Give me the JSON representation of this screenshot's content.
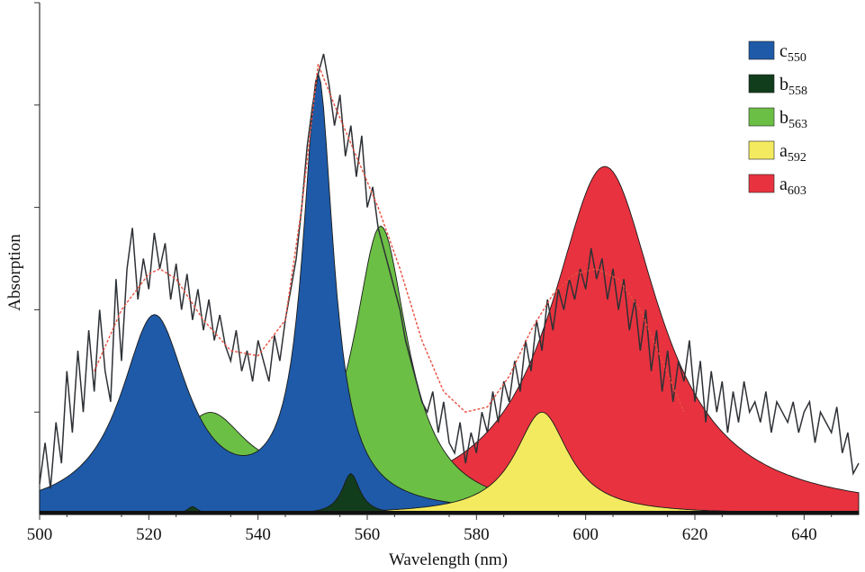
{
  "chart_data": {
    "type": "area",
    "xlabel": "Wavelength (nm)",
    "ylabel": "Absorption",
    "xlim": [
      500,
      650
    ],
    "ylim": [
      0,
      1.0
    ],
    "x_ticks": [
      500,
      520,
      540,
      560,
      580,
      600,
      620,
      640
    ],
    "y_tick_labels_shown": false,
    "grid": false,
    "legend_position": "top-right",
    "series": [
      {
        "name": "c550",
        "label_main": "c",
        "label_sub": "550",
        "color": "#1e5aa8",
        "kind": "fill",
        "components": [
          {
            "center": 551,
            "height": 0.84,
            "width": 3.4
          },
          {
            "center": 521,
            "height": 0.38,
            "width": 7.5
          }
        ]
      },
      {
        "name": "b558",
        "label_main": "b",
        "label_sub": "558",
        "color": "#123d1c",
        "kind": "fill",
        "components": [
          {
            "center": 557,
            "height": 0.08,
            "width": 2.0
          },
          {
            "center": 528,
            "height": 0.015,
            "width": 1.2
          }
        ]
      },
      {
        "name": "b563",
        "label_main": "b",
        "label_sub": "563",
        "color": "#6bbf45",
        "kind": "fill",
        "components": [
          {
            "center": 562.5,
            "height": 0.55,
            "width": 6.0
          },
          {
            "center": 531,
            "height": 0.18,
            "width": 9.0
          }
        ]
      },
      {
        "name": "a592",
        "label_main": "a",
        "label_sub": "592",
        "color": "#f3ea5f",
        "kind": "fill",
        "components": [
          {
            "center": 592,
            "height": 0.2,
            "width": 6.0
          }
        ]
      },
      {
        "name": "a603",
        "label_main": "a",
        "label_sub": "603",
        "color": "#e8323f",
        "kind": "fill",
        "components": [
          {
            "center": 603.5,
            "height": 0.68,
            "width": 12.0
          }
        ]
      }
    ],
    "measured_spectrum": {
      "color": "#2e3135",
      "x": [
        500,
        501,
        502,
        503,
        504,
        505,
        506,
        507,
        508,
        509,
        510,
        511,
        512,
        513,
        514,
        515,
        516,
        517,
        518,
        519,
        520,
        521,
        522,
        523,
        524,
        525,
        526,
        527,
        528,
        529,
        530,
        531,
        532,
        533,
        534,
        535,
        536,
        537,
        538,
        539,
        540,
        541,
        542,
        543,
        544,
        545,
        546,
        547,
        548,
        549,
        550,
        551,
        552,
        553,
        554,
        555,
        556,
        557,
        558,
        559,
        560,
        561,
        562,
        563,
        564,
        565,
        566,
        567,
        568,
        569,
        570,
        571,
        572,
        573,
        574,
        575,
        576,
        577,
        578,
        579,
        580,
        581,
        582,
        583,
        584,
        585,
        586,
        587,
        588,
        589,
        590,
        591,
        592,
        593,
        594,
        595,
        596,
        597,
        598,
        599,
        600,
        601,
        602,
        603,
        604,
        605,
        606,
        607,
        608,
        609,
        610,
        611,
        612,
        613,
        614,
        615,
        616,
        617,
        618,
        619,
        620,
        621,
        622,
        623,
        624,
        625,
        626,
        627,
        628,
        629,
        630,
        631,
        632,
        633,
        634,
        635,
        636,
        637,
        638,
        639,
        640,
        641,
        642,
        643,
        644,
        645,
        646,
        647,
        648,
        649,
        650
      ],
      "y": [
        0.06,
        0.14,
        0.05,
        0.18,
        0.1,
        0.28,
        0.16,
        0.32,
        0.2,
        0.36,
        0.24,
        0.4,
        0.28,
        0.22,
        0.46,
        0.3,
        0.48,
        0.56,
        0.42,
        0.5,
        0.44,
        0.55,
        0.48,
        0.53,
        0.42,
        0.49,
        0.4,
        0.47,
        0.38,
        0.44,
        0.36,
        0.42,
        0.34,
        0.39,
        0.33,
        0.3,
        0.36,
        0.28,
        0.32,
        0.26,
        0.34,
        0.3,
        0.26,
        0.35,
        0.3,
        0.38,
        0.44,
        0.5,
        0.6,
        0.72,
        0.8,
        0.86,
        0.9,
        0.84,
        0.76,
        0.82,
        0.7,
        0.76,
        0.66,
        0.74,
        0.6,
        0.64,
        0.56,
        0.52,
        0.48,
        0.44,
        0.4,
        0.34,
        0.3,
        0.26,
        0.22,
        0.2,
        0.24,
        0.16,
        0.22,
        0.14,
        0.12,
        0.18,
        0.1,
        0.16,
        0.12,
        0.2,
        0.16,
        0.24,
        0.18,
        0.26,
        0.22,
        0.3,
        0.24,
        0.34,
        0.28,
        0.38,
        0.32,
        0.42,
        0.36,
        0.44,
        0.4,
        0.46,
        0.42,
        0.48,
        0.44,
        0.52,
        0.46,
        0.5,
        0.42,
        0.48,
        0.4,
        0.46,
        0.36,
        0.42,
        0.32,
        0.4,
        0.28,
        0.36,
        0.24,
        0.32,
        0.22,
        0.3,
        0.26,
        0.34,
        0.22,
        0.3,
        0.18,
        0.28,
        0.2,
        0.26,
        0.16,
        0.24,
        0.18,
        0.26,
        0.2,
        0.22,
        0.18,
        0.24,
        0.16,
        0.22,
        0.2,
        0.18,
        0.22,
        0.16,
        0.2,
        0.22,
        0.14,
        0.2,
        0.18,
        0.16,
        0.21,
        0.12,
        0.16,
        0.08,
        0.1
      ]
    },
    "fit_curve": {
      "color": "#e85040",
      "x": [
        510,
        515,
        520,
        522,
        525,
        530,
        535,
        540,
        545,
        548,
        551,
        554,
        558,
        562,
        566,
        570,
        574,
        578,
        582,
        586,
        590,
        594,
        598,
        602,
        606,
        610,
        614,
        618
      ],
      "y": [
        0.28,
        0.4,
        0.47,
        0.48,
        0.46,
        0.38,
        0.32,
        0.31,
        0.38,
        0.6,
        0.88,
        0.8,
        0.7,
        0.6,
        0.48,
        0.34,
        0.24,
        0.2,
        0.21,
        0.27,
        0.36,
        0.43,
        0.47,
        0.48,
        0.46,
        0.4,
        0.3,
        0.2
      ]
    }
  }
}
